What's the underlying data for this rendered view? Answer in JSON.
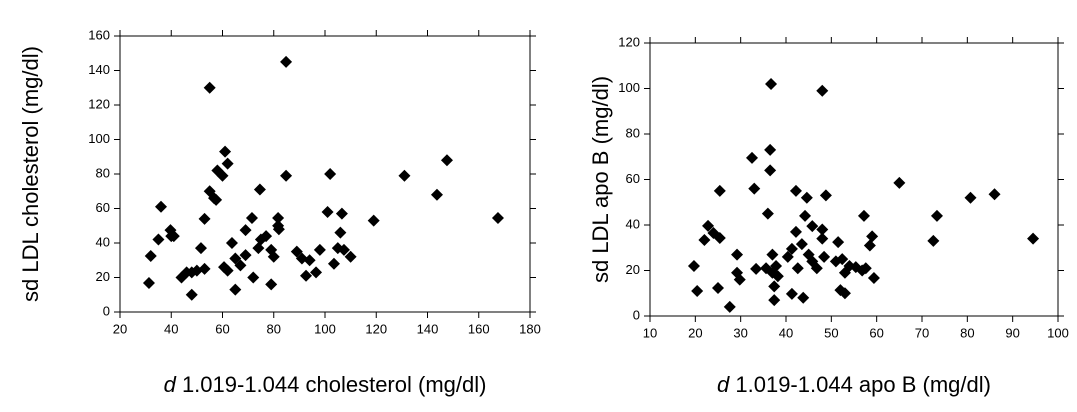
{
  "chart_data": [
    {
      "type": "scatter",
      "x_label_prefix": "d",
      "x_label": "1.019-1.044 cholesterol (mg/dl)",
      "y_label": "sd LDL cholesterol (mg/dl)",
      "color": "#000000",
      "xlim": [
        20,
        180
      ],
      "xticks": [
        20,
        40,
        60,
        80,
        100,
        120,
        140,
        160,
        180
      ],
      "ylim": [
        0,
        160
      ],
      "yticks": [
        0,
        20,
        40,
        60,
        80,
        100,
        120,
        140,
        160
      ],
      "x": [
        31.3,
        32,
        35,
        36,
        39.7,
        40,
        41,
        44,
        46,
        48,
        48,
        50,
        51.6,
        53,
        53,
        55,
        55,
        56.7,
        57.5,
        58,
        60,
        61,
        62,
        60.6,
        62,
        63.7,
        65,
        65,
        67,
        69,
        69,
        71.5,
        72,
        74,
        74.6,
        75,
        77,
        79,
        80,
        79,
        81.7,
        81.7,
        82,
        84.8,
        84.8,
        89,
        91,
        92.6,
        94,
        96.5,
        98,
        101,
        102,
        103.5,
        105,
        106,
        106.6,
        107.4,
        110,
        119,
        131,
        143.7,
        147.6,
        167.5
      ],
      "y": [
        16.8,
        32.5,
        42,
        61,
        47.5,
        44,
        44,
        20,
        23,
        23,
        10,
        24,
        37,
        25,
        54,
        70,
        130,
        66,
        65,
        82,
        79,
        93,
        86,
        26,
        24,
        40,
        13,
        31,
        27,
        33,
        47.5,
        54.5,
        20,
        37,
        71,
        42,
        44,
        36,
        32,
        16,
        54.5,
        50,
        48,
        145,
        79,
        35,
        31,
        21,
        30,
        23,
        36,
        58,
        80,
        28,
        37,
        46,
        57,
        36,
        32,
        53,
        79,
        68,
        88,
        54.5
      ]
    },
    {
      "type": "scatter",
      "x_label_prefix": "d",
      "x_label": "1.019-1.044 apo B (mg/dl)",
      "y_label": "sd LDL apo B (mg/dl)",
      "color": "#000000",
      "xlim": [
        10,
        100
      ],
      "xticks": [
        10,
        20,
        30,
        40,
        50,
        60,
        70,
        80,
        90,
        100
      ],
      "ylim": [
        0,
        120
      ],
      "yticks": [
        0,
        20,
        40,
        60,
        80,
        100,
        120
      ],
      "x": [
        19.7,
        20.4,
        22,
        22.8,
        24,
        25.4,
        25,
        25.4,
        27.6,
        29.2,
        29.2,
        29.8,
        32.5,
        33,
        33.4,
        35.6,
        36,
        36.5,
        36.5,
        36.7,
        37,
        37,
        37.4,
        37.4,
        37.8,
        38.2,
        40.4,
        41.3,
        41.3,
        42.2,
        42.2,
        42.6,
        43.5,
        43.8,
        44.2,
        44.6,
        45,
        45.8,
        45.8,
        46.8,
        48,
        48,
        48,
        48.8,
        48.4,
        51,
        51.5,
        52,
        52.4,
        53,
        53,
        54,
        55.4,
        56.8,
        57.2,
        57.6,
        58.5,
        59,
        59.4,
        65,
        72.5,
        73.3,
        80.7,
        86,
        94.5
      ],
      "y": [
        22,
        11,
        33.4,
        39.6,
        36.5,
        34.3,
        12.3,
        55,
        4,
        27,
        19,
        16,
        69.5,
        56,
        20.7,
        21,
        45,
        73,
        64,
        102,
        27,
        19,
        13,
        7,
        22,
        17.5,
        26,
        9.7,
        29.5,
        55,
        37,
        21,
        31.6,
        8,
        44,
        52,
        27,
        24,
        39.5,
        21,
        99,
        34,
        38,
        53,
        26,
        24,
        32.5,
        11.4,
        25,
        10,
        19,
        22,
        21.5,
        20,
        44,
        21,
        31,
        35,
        16.7,
        58.5,
        33,
        44,
        52,
        53.5,
        34
      ]
    }
  ]
}
